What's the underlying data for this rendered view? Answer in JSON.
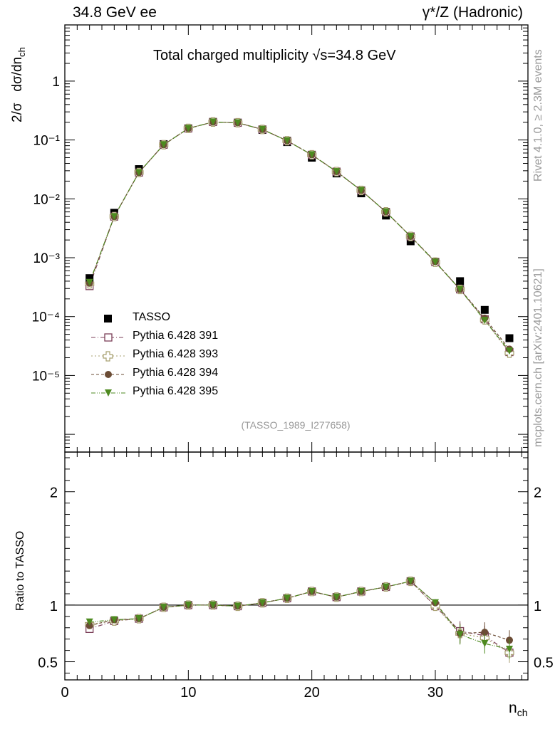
{
  "header": {
    "left": "34.8 GeV ee",
    "right": "γ*/Z (Hadronic)"
  },
  "side_labels": {
    "rivet": "Rivet 4.1.0, ≥ 2.3M events",
    "mcplots": "mcplots.cern.ch [arXiv:2401.10621]"
  },
  "colors": {
    "TASSO": "#000000",
    "p391": "#7b3f58",
    "p393": "#a8a070",
    "p394": "#6b4c35",
    "p395": "#4e8a20"
  },
  "chart_data": [
    {
      "type": "scatter",
      "title": "Total charged multiplicity √s=34.8 GeV",
      "xlabel": "",
      "ylabel": "2/σ  dσ/dn_ch",
      "ylabel_main": "2/σ",
      "ylabel_sub": "dσ/dn",
      "ylabel_sub_sub": "ch",
      "yscale": "log",
      "xlim": [
        0,
        37.5
      ],
      "ylim": [
        5e-07,
        9
      ],
      "y_tick_labels": [
        "1",
        "10⁻¹",
        "10⁻²",
        "10⁻³",
        "10⁻⁴",
        "10⁻⁵"
      ],
      "annotation": "(TASSO_1989_I277658)",
      "x": [
        2,
        4,
        6,
        8,
        10,
        12,
        14,
        16,
        18,
        20,
        22,
        24,
        26,
        28,
        30,
        32,
        34,
        36
      ],
      "series": [
        {
          "name": "TASSO",
          "values": [
            0.00045,
            0.0058,
            0.032,
            0.085,
            0.157,
            0.202,
            0.197,
            0.148,
            0.092,
            0.05,
            0.027,
            0.0124,
            0.0052,
            0.0019,
            0.00085,
            0.0004,
            0.00013,
            4.3e-05
          ]
        },
        {
          "name": "Pythia 6.428 391",
          "values": [
            0.00033,
            0.005,
            0.028,
            0.083,
            0.157,
            0.202,
            0.196,
            0.151,
            0.097,
            0.056,
            0.029,
            0.0139,
            0.006,
            0.0023,
            0.00084,
            0.00029,
            9e-05,
            2.5e-05
          ]
        },
        {
          "name": "Pythia 6.428 393",
          "values": [
            0.00036,
            0.005,
            0.028,
            0.083,
            0.157,
            0.202,
            0.196,
            0.151,
            0.097,
            0.056,
            0.029,
            0.0139,
            0.006,
            0.0023,
            0.00084,
            0.00029,
            8.8e-05,
            2.4e-05
          ]
        },
        {
          "name": "Pythia 6.428 394",
          "values": [
            0.00037,
            0.005,
            0.028,
            0.083,
            0.157,
            0.202,
            0.196,
            0.151,
            0.097,
            0.056,
            0.029,
            0.0139,
            0.006,
            0.0023,
            0.00086,
            0.00029,
            9.4e-05,
            2.8e-05
          ]
        },
        {
          "name": "Pythia 6.428 395",
          "values": [
            0.00038,
            0.005,
            0.028,
            0.083,
            0.157,
            0.202,
            0.196,
            0.151,
            0.097,
            0.056,
            0.029,
            0.0139,
            0.006,
            0.0023,
            0.00084,
            0.00029,
            8.6e-05,
            2.6e-05
          ]
        }
      ]
    },
    {
      "type": "scatter",
      "title": "",
      "xlabel": "n_ch",
      "xlabel_main": "n",
      "xlabel_sub": "ch",
      "ylabel": "Ratio to TASSO",
      "xlim": [
        0,
        37.5
      ],
      "ylim": [
        0.34,
        2.35
      ],
      "x_tick_labels": [
        "0",
        "10",
        "20",
        "30"
      ],
      "y_tick_labels": [
        "0.5",
        "1",
        "2"
      ],
      "x": [
        2,
        4,
        6,
        8,
        10,
        12,
        14,
        16,
        18,
        20,
        22,
        24,
        26,
        28,
        30,
        32,
        34,
        36
      ],
      "series": [
        {
          "name": "Pythia 6.428 391",
          "values": [
            0.79,
            0.86,
            0.88,
            0.98,
            1.0,
            1.0,
            0.99,
            1.02,
            1.06,
            1.12,
            1.07,
            1.12,
            1.16,
            1.21,
            0.99,
            0.77,
            0.73,
            0.58
          ]
        },
        {
          "name": "Pythia 6.428 393",
          "values": [
            0.83,
            0.86,
            0.88,
            0.98,
            1.0,
            1.0,
            0.99,
            1.02,
            1.06,
            1.12,
            1.07,
            1.12,
            1.16,
            1.21,
            0.99,
            0.75,
            0.71,
            0.58
          ]
        },
        {
          "name": "Pythia 6.428 394",
          "values": [
            0.82,
            0.87,
            0.88,
            0.98,
            1.0,
            1.0,
            0.99,
            1.02,
            1.06,
            1.12,
            1.07,
            1.12,
            1.16,
            1.21,
            1.02,
            0.75,
            0.76,
            0.69
          ]
        },
        {
          "name": "Pythia 6.428 395",
          "values": [
            0.85,
            0.87,
            0.88,
            0.98,
            1.0,
            1.0,
            0.99,
            1.02,
            1.06,
            1.12,
            1.07,
            1.12,
            1.16,
            1.21,
            1.02,
            0.74,
            0.66,
            0.61
          ]
        }
      ]
    }
  ]
}
